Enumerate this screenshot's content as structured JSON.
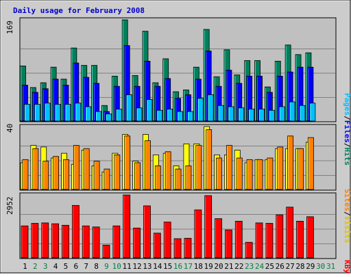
{
  "title": "Daily usage for February 2008",
  "colors": {
    "frame_bg": "#cccccc",
    "plot_bg": "#c0c0c0",
    "title": "#0000cc",
    "hits": "#00805c",
    "files": "#0000ff",
    "pages": "#00c0ff",
    "visits": "#ffff00",
    "sites": "#ff8000",
    "kbytes": "#ff0000",
    "weekday_label": "#000000",
    "weekend_label": "#008040",
    "axis_label": "#000000"
  },
  "legend": {
    "top": [
      "Hits",
      "Files",
      "Pages"
    ],
    "middle": [
      "Visits",
      "Sites"
    ],
    "bottom": [
      "KBytes"
    ],
    "separator": "/"
  },
  "chart_data": [
    {
      "type": "bar",
      "panel": "hits-files-pages",
      "ylabel": "169",
      "ylim": [
        0,
        169
      ],
      "grid": true,
      "categories": [
        "1",
        "2",
        "3",
        "4",
        "5",
        "6",
        "7",
        "8",
        "9",
        "10",
        "11",
        "12",
        "13",
        "14",
        "15",
        "16",
        "17",
        "18",
        "19",
        "20",
        "21",
        "22",
        "23",
        "24",
        "25",
        "26",
        "27",
        "28",
        "29",
        "30",
        "31"
      ],
      "series": [
        {
          "name": "Hits",
          "values": [
            92,
            56,
            64,
            90,
            70,
            122,
            93,
            93,
            26,
            75,
            169,
            76,
            150,
            64,
            104,
            49,
            52,
            90,
            153,
            74,
            119,
            77,
            101,
            101,
            57,
            100,
            127,
            111,
            114,
            0,
            0
          ]
        },
        {
          "name": "Files",
          "values": [
            60,
            48,
            54,
            70,
            60,
            97,
            73,
            63,
            16,
            58,
            126,
            58,
            100,
            58,
            71,
            38,
            44,
            70,
            117,
            58,
            85,
            63,
            75,
            75,
            48,
            75,
            82,
            90,
            90,
            0,
            0
          ]
        },
        {
          "name": "Pages",
          "values": [
            28,
            28,
            30,
            28,
            28,
            30,
            24,
            16,
            12,
            20,
            44,
            22,
            36,
            18,
            20,
            16,
            16,
            38,
            44,
            26,
            24,
            22,
            20,
            20,
            18,
            24,
            32,
            26,
            30,
            0,
            0
          ]
        }
      ]
    },
    {
      "type": "bar",
      "panel": "visits-sites",
      "ylabel": "40",
      "ylim": [
        0,
        40
      ],
      "grid": true,
      "categories": [
        "1",
        "2",
        "3",
        "4",
        "5",
        "6",
        "7",
        "8",
        "9",
        "10",
        "11",
        "12",
        "13",
        "14",
        "15",
        "16",
        "17",
        "18",
        "19",
        "20",
        "21",
        "22",
        "23",
        "24",
        "25",
        "26",
        "27",
        "28",
        "29",
        "30",
        "31"
      ],
      "series": [
        {
          "name": "Visits",
          "values": [
            17,
            28,
            27,
            20,
            23,
            16,
            25,
            15,
            11,
            23,
            35,
            18,
            35,
            22,
            23,
            15,
            29,
            29,
            40,
            22,
            22,
            25,
            17,
            19,
            19,
            26,
            26,
            26,
            30,
            0,
            0
          ]
        },
        {
          "name": "Sites",
          "values": [
            19,
            26,
            18,
            21,
            19,
            28,
            26,
            18,
            13,
            22,
            34,
            17,
            31,
            15,
            24,
            13,
            15,
            28,
            38,
            20,
            28,
            20,
            19,
            19,
            20,
            27,
            34,
            26,
            33,
            0,
            0
          ]
        }
      ]
    },
    {
      "type": "bar",
      "panel": "kbytes",
      "ylabel": "2952",
      "ylim": [
        0,
        2952
      ],
      "grid": true,
      "categories": [
        "1",
        "2",
        "3",
        "4",
        "5",
        "6",
        "7",
        "8",
        "9",
        "10",
        "11",
        "12",
        "13",
        "14",
        "15",
        "16",
        "17",
        "18",
        "19",
        "20",
        "21",
        "22",
        "23",
        "24",
        "25",
        "26",
        "27",
        "28",
        "29",
        "30",
        "31"
      ],
      "series": [
        {
          "name": "KBytes",
          "values": [
            1500,
            1620,
            1640,
            1600,
            1530,
            2460,
            1500,
            1450,
            600,
            1500,
            2950,
            1400,
            2440,
            1160,
            1680,
            900,
            920,
            2250,
            2920,
            1840,
            1310,
            1720,
            730,
            1640,
            1620,
            2020,
            2380,
            1720,
            1930,
            0,
            0
          ]
        }
      ]
    }
  ]
}
